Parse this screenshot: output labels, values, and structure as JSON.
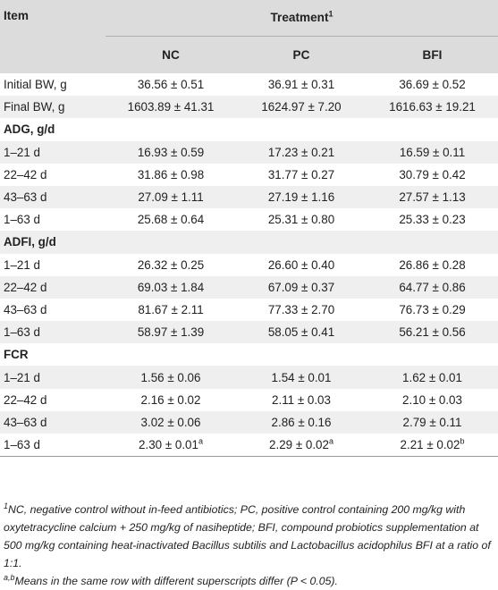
{
  "header": {
    "item_label": "Item",
    "treatment_label": "Treatment",
    "treatment_sup": "1",
    "columns": [
      "NC",
      "PC",
      "BFI"
    ]
  },
  "rows": [
    {
      "label": "Initial BW, g",
      "values": [
        "36.56 ± 0.51",
        "36.91 ± 0.31",
        "36.69 ± 0.52"
      ]
    },
    {
      "label": "Final BW, g",
      "values": [
        "1603.89 ± 41.31",
        "1624.97 ± 7.20",
        "1616.63 ± 19.21"
      ]
    },
    {
      "label": "ADG, g/d",
      "section": true
    },
    {
      "label": "1–21 d",
      "values": [
        "16.93 ± 0.59",
        "17.23 ± 0.21",
        "16.59 ± 0.11"
      ]
    },
    {
      "label": "22–42 d",
      "values": [
        "31.86 ± 0.98",
        "31.77 ± 0.27",
        "30.79 ± 0.42"
      ]
    },
    {
      "label": "43–63 d",
      "values": [
        "27.09 ± 1.11",
        "27.19 ± 1.16",
        "27.57 ± 1.13"
      ]
    },
    {
      "label": "1–63 d",
      "values": [
        "25.68 ± 0.64",
        "25.31 ± 0.80",
        "25.33 ± 0.23"
      ]
    },
    {
      "label": "ADFI, g/d",
      "section": true
    },
    {
      "label": "1–21 d",
      "values": [
        "26.32 ± 0.25",
        "26.60 ± 0.40",
        "26.86 ± 0.28"
      ]
    },
    {
      "label": "22–42 d",
      "values": [
        "69.03 ± 1.84",
        "67.09 ± 0.37",
        "64.77 ± 0.86"
      ]
    },
    {
      "label": "43–63 d",
      "values": [
        "81.67 ± 2.11",
        "77.33 ± 2.70",
        "76.73 ± 0.29"
      ]
    },
    {
      "label": "1–63 d",
      "values": [
        "58.97 ± 1.39",
        "58.05 ± 0.41",
        "56.21 ± 0.56"
      ]
    },
    {
      "label": "FCR",
      "section": true
    },
    {
      "label": "1–21 d",
      "values": [
        "1.56 ± 0.06",
        "1.54 ± 0.01",
        "1.62 ± 0.01"
      ]
    },
    {
      "label": "22–42 d",
      "values": [
        "2.16 ± 0.02",
        "2.11 ± 0.03",
        "2.10 ± 0.03"
      ]
    },
    {
      "label": "43–63 d",
      "values": [
        "3.02 ± 0.06",
        "2.86 ± 0.16",
        "2.79 ± 0.11"
      ]
    },
    {
      "label": "1–63 d",
      "values": [
        "2.30 ± 0.01",
        "2.29 ± 0.02",
        "2.21 ± 0.02"
      ],
      "sups": [
        "a",
        "a",
        "b"
      ]
    }
  ],
  "footnotes": {
    "note1_sup": "1",
    "note1_text": "NC, negative control without in-feed antibiotics; PC, positive control containing 200 mg/kg with oxytetracycline calcium + 250 mg/kg of nasiheptide; BFI, compound probiotics supplementation at 500 mg/kg containing heat-inactivated Bacillus subtilis and Lactobacillus acidophilus BFI at a ratio of 1:1.",
    "note2_sup": "a,b",
    "note2_text": "Means in the same row with different superscripts differ (P < 0.05)."
  }
}
